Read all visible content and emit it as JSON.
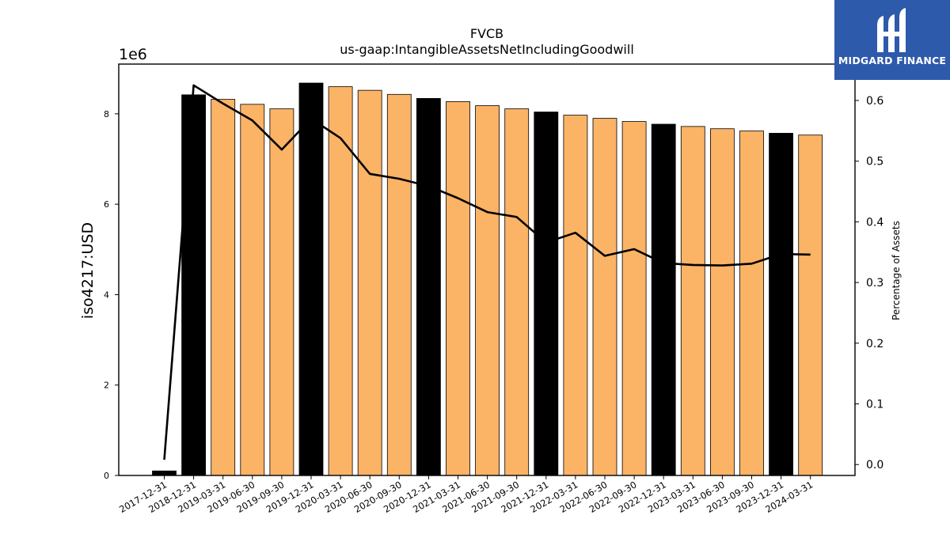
{
  "logo": {
    "text": "MIDGARD FINANCE",
    "background": "#2e5aac"
  },
  "chart_data": {
    "type": "bar",
    "title": "FVCB",
    "subtitle": "us-gaap:IntangibleAssetsNetIncludingGoodwill",
    "ylabel": "iso4217:USD",
    "y_offset_text": "1e6",
    "y2label": "Percentage of Assets",
    "ylim": [
      0,
      9100000
    ],
    "y2lim": [
      -0.018,
      0.66
    ],
    "yticks": [
      0,
      2,
      4,
      6,
      8
    ],
    "y2ticks": [
      "0.0",
      "0.1",
      "0.2",
      "0.3",
      "0.4",
      "0.5",
      "0.6"
    ],
    "categories": [
      "2017-12-31",
      "2018-12-31",
      "2019-03-31",
      "2019-06-30",
      "2019-09-30",
      "2019-12-31",
      "2020-03-31",
      "2020-06-30",
      "2020-09-30",
      "2020-12-31",
      "2021-03-31",
      "2021-06-30",
      "2021-09-30",
      "2021-12-31",
      "2022-03-31",
      "2022-06-30",
      "2022-09-30",
      "2022-12-31",
      "2023-03-31",
      "2023-06-30",
      "2023-09-30",
      "2023-12-31",
      "2024-03-31"
    ],
    "values": [
      100000,
      8420000,
      8320000,
      8210000,
      8110000,
      8680000,
      8600000,
      8520000,
      8430000,
      8340000,
      8270000,
      8180000,
      8110000,
      8040000,
      7970000,
      7900000,
      7830000,
      7770000,
      7720000,
      7670000,
      7620000,
      7570000,
      7530000
    ],
    "year_end": [
      true,
      true,
      false,
      false,
      false,
      true,
      false,
      false,
      false,
      true,
      false,
      false,
      false,
      true,
      false,
      false,
      false,
      true,
      false,
      false,
      false,
      true,
      false
    ],
    "pct_of_assets": [
      0.008,
      0.625,
      0.595,
      0.567,
      0.519,
      0.57,
      0.538,
      0.479,
      0.471,
      0.459,
      0.439,
      0.416,
      0.408,
      0.366,
      0.382,
      0.344,
      0.355,
      0.332,
      0.329,
      0.328,
      0.331,
      0.347,
      0.346
    ],
    "colors": {
      "year_end_bar": "#000000",
      "quarter_bar": "#fbb366",
      "line": "#000000"
    }
  }
}
